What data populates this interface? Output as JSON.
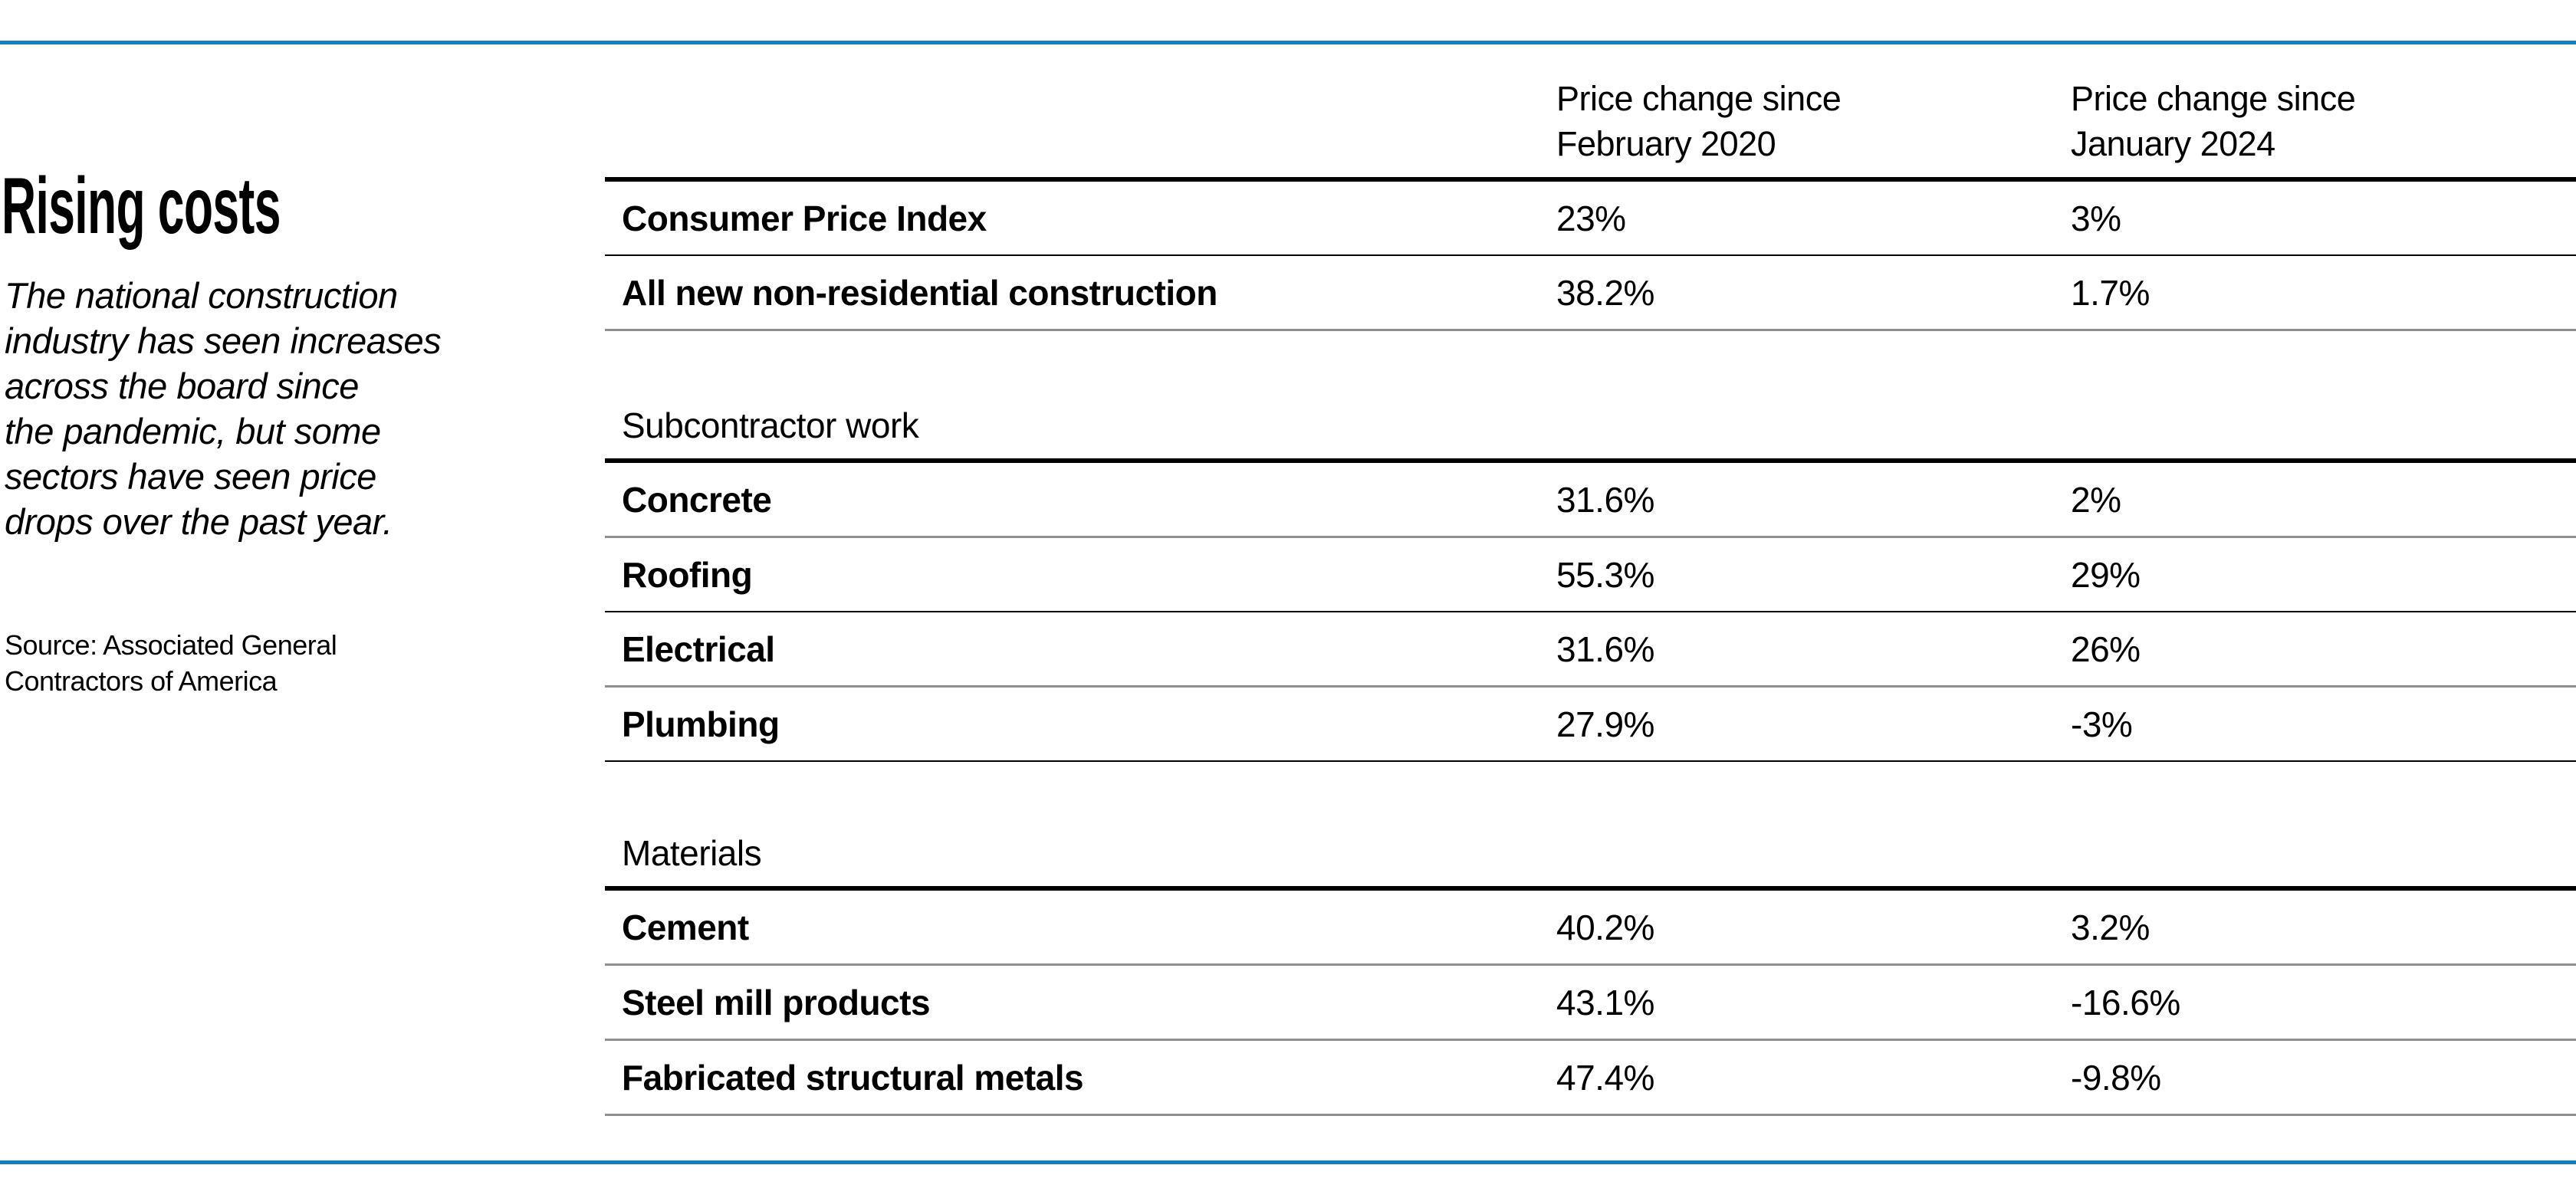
{
  "colors": {
    "accent_blue": "#1080c4",
    "rule_black": "#000000",
    "rule_gray": "#8f8f8f"
  },
  "left_panel": {
    "title": "Rising costs",
    "description": "The national construction\nindustry has seen increases\nacross the board since\nthe pandemic, but some\nsectors have seen price\ndrops over the past year.",
    "source": "Source: Associated General\nContractors of America"
  },
  "chart_data": {
    "type": "table",
    "title": "Rising costs",
    "subtitle": "The national construction industry has seen increases across the board since the pandemic, but some sectors have seen price drops over the past year.",
    "source": "Source: Associated General Contractors of America",
    "columns": [
      "",
      "Price change since\nFebruary 2020",
      "Price change since\nJanuary 2024"
    ],
    "sections": [
      {
        "header": "",
        "rows": [
          [
            "Consumer Price Index",
            "23%",
            "3%"
          ],
          [
            "All new non-residential construction",
            "38.2%",
            "1.7%"
          ]
        ]
      },
      {
        "header": "Subcontractor work",
        "rows": [
          [
            "Concrete",
            "31.6%",
            "2%"
          ],
          [
            "Roofing",
            "55.3%",
            "29%"
          ],
          [
            "Electrical",
            "31.6%",
            "26%"
          ],
          [
            "Plumbing",
            "27.9%",
            "-3%"
          ]
        ]
      },
      {
        "header": "Materials",
        "rows": [
          [
            "Cement",
            "40.2%",
            "3.2%"
          ],
          [
            "Steel mill products",
            "43.1%",
            "-16.6%"
          ],
          [
            "Fabricated structural metals",
            "47.4%",
            "-9.8%"
          ]
        ]
      }
    ]
  }
}
